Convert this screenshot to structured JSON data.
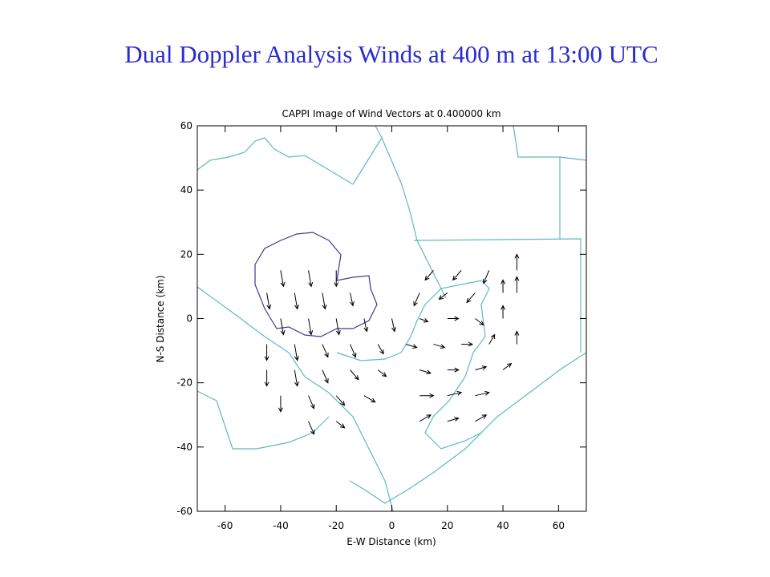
{
  "title": "Dual Doppler Analysis Winds at 400 m at 13:00 UTC",
  "chart_data": {
    "type": "quiver",
    "title": "CAPPI Image of Wind Vectors at  0.400000 km",
    "xlabel": "E-W Distance (km)",
    "ylabel": "N-S Distance (km)",
    "xlim": [
      -70,
      70
    ],
    "ylim": [
      -60,
      60
    ],
    "xticks": [
      -60,
      -40,
      -20,
      0,
      20,
      40,
      60
    ],
    "yticks": [
      -60,
      -40,
      -20,
      0,
      20,
      40,
      60
    ],
    "color": "#000000",
    "x": [
      -40,
      -30,
      -20,
      15,
      25,
      35,
      45,
      -45,
      -35,
      -25,
      -15,
      10,
      20,
      30,
      40,
      45,
      -40,
      -30,
      -20,
      -10,
      0,
      10,
      20,
      30,
      40,
      -45,
      -35,
      -25,
      -15,
      -5,
      5,
      15,
      25,
      35,
      45,
      -45,
      -35,
      -25,
      -15,
      -5,
      10,
      20,
      30,
      40,
      -40,
      -30,
      -20,
      -10,
      10,
      20,
      30,
      -30,
      -20,
      10,
      20,
      30
    ],
    "y": [
      15,
      15,
      15,
      15,
      15,
      15,
      15,
      8,
      8,
      8,
      8,
      8,
      8,
      8,
      8,
      8,
      0,
      0,
      0,
      0,
      0,
      0,
      0,
      0,
      0,
      -8,
      -8,
      -8,
      -8,
      -8,
      -8,
      -8,
      -8,
      -8,
      -8,
      -16,
      -16,
      -16,
      -16,
      -16,
      -16,
      -16,
      -16,
      -16,
      -24,
      -24,
      -24,
      -24,
      -24,
      -24,
      -24,
      -32,
      -32,
      -32,
      -32,
      -32
    ],
    "u": [
      1,
      1,
      0,
      -3,
      -3,
      -2,
      0,
      1,
      1,
      1,
      1,
      -2,
      -3,
      -3,
      0,
      0,
      1,
      1,
      1,
      1,
      1,
      3,
      4,
      3,
      0,
      0,
      1,
      2,
      2,
      2,
      4,
      4,
      4,
      2,
      0,
      0,
      1,
      2,
      3,
      3,
      4,
      4,
      4,
      3,
      0,
      2,
      3,
      4,
      5,
      5,
      5,
      2,
      3,
      4,
      4,
      4
    ],
    "v": [
      -5,
      -5,
      -5,
      -3,
      -3,
      -4,
      5,
      -5,
      -5,
      -5,
      -4,
      -4,
      -2,
      -3,
      4,
      5,
      -5,
      -5,
      -5,
      -4,
      -4,
      -1,
      0,
      -2,
      4,
      -5,
      -5,
      -4,
      -4,
      -3,
      -1,
      -1,
      0,
      3,
      4,
      -5,
      -5,
      -4,
      -3,
      -2,
      -1,
      0,
      1,
      2,
      -5,
      -4,
      -3,
      -2,
      0,
      1,
      1,
      -4,
      -2,
      2,
      1,
      2
    ]
  }
}
